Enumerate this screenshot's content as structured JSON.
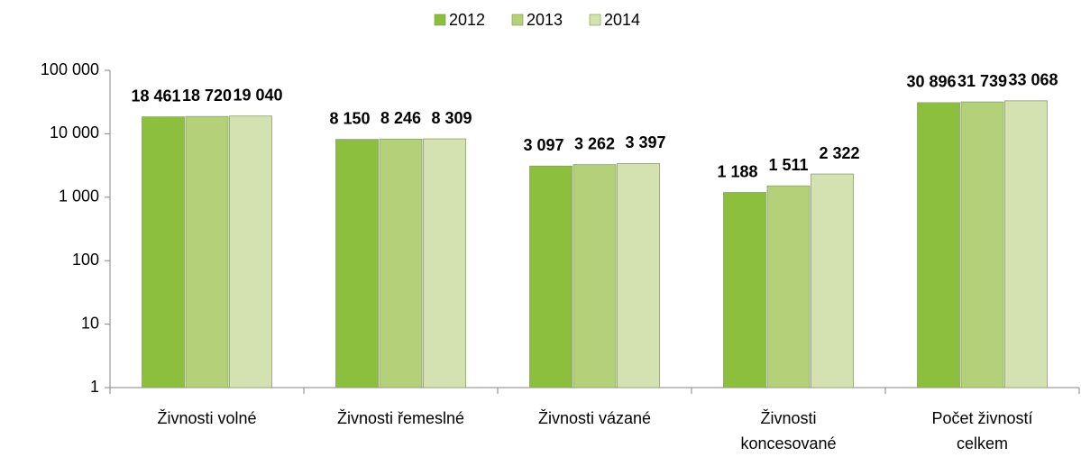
{
  "chart_data": {
    "type": "bar",
    "categories": [
      [
        "Živnosti volné"
      ],
      [
        "Živnosti řemeslné"
      ],
      [
        "Živnosti vázané"
      ],
      [
        "Živnosti",
        "koncesované"
      ],
      [
        "Počet živností",
        "celkem"
      ]
    ],
    "series": [
      {
        "name": "2012",
        "color": "#8dbf3e",
        "values": [
          18461,
          8150,
          3097,
          1188,
          30896
        ],
        "value_labels": [
          "18 461",
          "8 150",
          "3 097",
          "1 188",
          "30 896"
        ]
      },
      {
        "name": "2013",
        "color": "#b4d17a",
        "values": [
          18720,
          8246,
          3262,
          1511,
          31739
        ],
        "value_labels": [
          "18 720",
          "8 246",
          "3 262",
          "1 511",
          "31 739"
        ]
      },
      {
        "name": "2014",
        "color": "#d3e2b0",
        "values": [
          19040,
          8309,
          3397,
          2322,
          33068
        ],
        "value_labels": [
          "19 040",
          "8 309",
          "3 397",
          "2 322",
          "33 068"
        ]
      }
    ],
    "log_scale": true,
    "ylim": [
      1,
      100000
    ],
    "yticks": [
      1,
      10,
      100,
      {
        "value": 1000,
        "label": "1 000"
      },
      {
        "value": 10000,
        "label": "10 000"
      },
      {
        "value": 100000,
        "label": "100 000"
      }
    ],
    "legend": "top"
  }
}
